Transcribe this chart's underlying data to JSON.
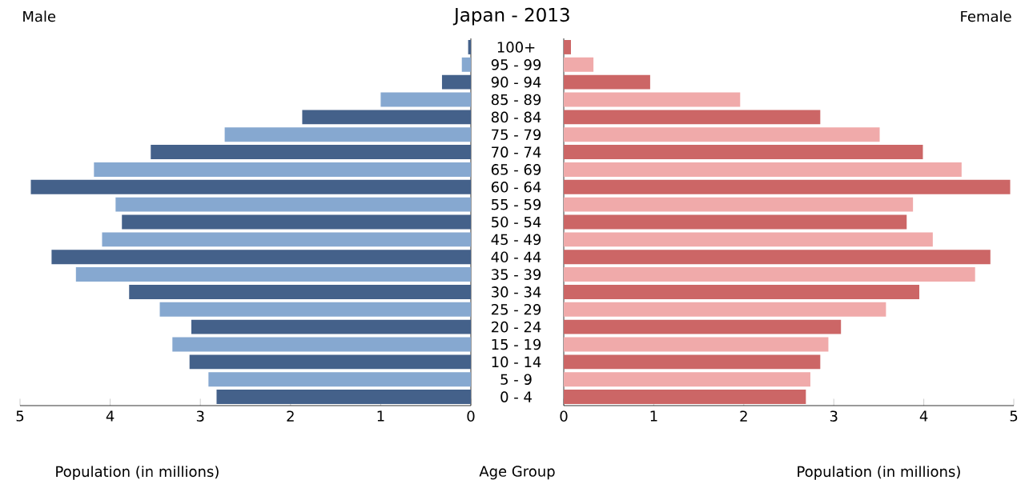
{
  "chart_data": [
    {
      "type": "bar",
      "orientation": "horizontal",
      "title": "Japan - 2013",
      "xlabel": "Population (in millions)",
      "ylabel": "Age Group",
      "categories": [
        "100+",
        "95 - 99",
        "90 - 94",
        "85 - 89",
        "80 - 84",
        "75 - 79",
        "70 - 74",
        "65 - 69",
        "60 - 64",
        "55 - 59",
        "50 - 54",
        "45 - 49",
        "40 - 44",
        "35 - 39",
        "30 - 34",
        "25 - 29",
        "20 - 24",
        "15 - 19",
        "10 - 14",
        "5 - 9",
        "0 - 4"
      ],
      "series": [
        {
          "name": "Male",
          "colors": [
            "#44618a",
            "#86a8d0",
            "#44618a",
            "#86a8d0",
            "#44618a",
            "#86a8d0",
            "#44618a",
            "#86a8d0",
            "#44618a",
            "#86a8d0",
            "#44618a",
            "#86a8d0",
            "#44618a",
            "#86a8d0",
            "#44618a",
            "#86a8d0",
            "#44618a",
            "#86a8d0",
            "#44618a",
            "#86a8d0",
            "#44618a"
          ],
          "values": [
            0.03,
            0.1,
            0.32,
            1.0,
            1.87,
            2.73,
            3.55,
            4.18,
            4.88,
            3.94,
            3.87,
            4.09,
            4.65,
            4.38,
            3.79,
            3.45,
            3.1,
            3.31,
            3.12,
            2.91,
            2.82
          ]
        }
      ],
      "xlim": [
        5,
        0
      ],
      "xticks": [
        0,
        1,
        2,
        3,
        4,
        5
      ]
    },
    {
      "type": "bar",
      "orientation": "horizontal",
      "xlabel": "Population (in millions)",
      "categories": [
        null,
        null,
        null,
        null,
        null,
        null,
        null,
        null,
        null,
        null,
        null,
        null,
        null,
        null,
        null,
        null,
        null,
        null,
        null,
        null,
        null
      ],
      "series": [
        {
          "name": "Female",
          "colors": [
            "#cc6666",
            "#f0aaaa",
            "#cc6666",
            "#f0aaaa",
            "#cc6666",
            "#f0aaaa",
            "#cc6666",
            "#f0aaaa",
            "#cc6666",
            "#f0aaaa",
            "#cc6666",
            "#f0aaaa",
            "#cc6666",
            "#f0aaaa",
            "#cc6666",
            "#f0aaaa",
            "#cc6666",
            "#f0aaaa",
            "#cc6666",
            "#f0aaaa",
            "#cc6666"
          ],
          "values": [
            0.08,
            0.33,
            0.96,
            1.96,
            2.85,
            3.51,
            3.99,
            4.42,
            4.96,
            3.88,
            3.81,
            4.1,
            4.74,
            4.57,
            3.95,
            3.58,
            3.08,
            2.94,
            2.85,
            2.74,
            2.69
          ]
        }
      ],
      "xlim": [
        0,
        5
      ],
      "xticks": [
        0,
        1,
        2,
        3,
        4,
        5
      ]
    }
  ]
}
